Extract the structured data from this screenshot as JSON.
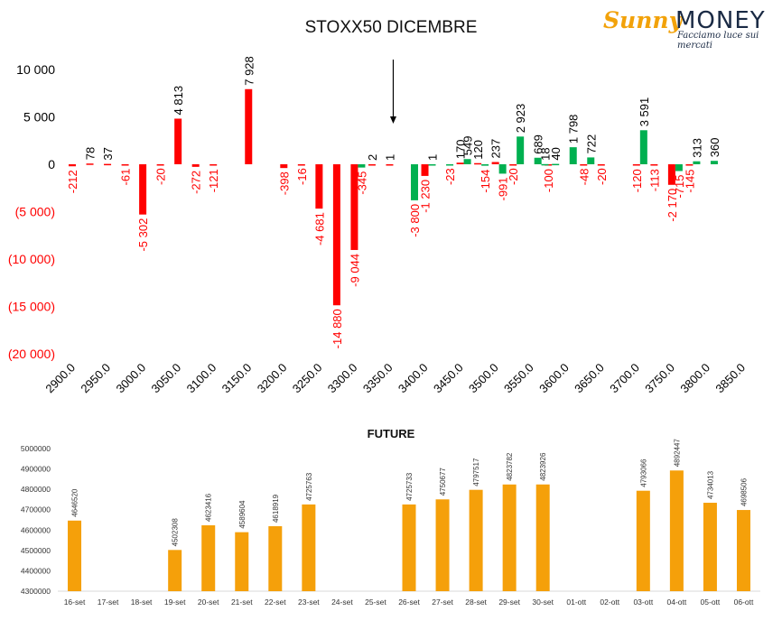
{
  "chart_data": [
    {
      "type": "bar",
      "title": "STOXX50 DICEMBRE",
      "x_tick_labels": [
        "2900.0",
        "2950.0",
        "3000.0",
        "3050.0",
        "3100.0",
        "3150.0",
        "3200.0",
        "3250.0",
        "3300.0",
        "3350.0",
        "3400.0",
        "3450.0",
        "3500.0",
        "3550.0",
        "3600.0",
        "3650.0",
        "3700.0",
        "3750.0",
        "3800.0",
        "3850.0"
      ],
      "y_tick_labels": [
        "10 000",
        "5 000",
        "0",
        "(5 000)",
        "(10 000)",
        "(15 000)",
        "(20 000)"
      ],
      "y_ticks": [
        10000,
        5000,
        0,
        -5000,
        -10000,
        -15000,
        -20000
      ],
      "ylim": [
        -20000,
        12000
      ],
      "xlim": [
        2900,
        3850
      ],
      "grid": false,
      "marker_strike": 3350,
      "series": [
        {
          "color": "#ff0000",
          "points": [
            {
              "x": 2900,
              "y": -212,
              "label": "-212"
            },
            {
              "x": 2925,
              "y": 78,
              "label": "78"
            },
            {
              "x": 2950,
              "y": 37,
              "label": "37"
            },
            {
              "x": 2975,
              "y": -61,
              "label": "-61"
            },
            {
              "x": 3000,
              "y": -5302,
              "label": "-5 302"
            },
            {
              "x": 3025,
              "y": -20,
              "label": "-20"
            },
            {
              "x": 3050,
              "y": 4813,
              "label": "4 813"
            },
            {
              "x": 3075,
              "y": -272,
              "label": "-272"
            },
            {
              "x": 3100,
              "y": -121,
              "label": "-121"
            },
            {
              "x": 3150,
              "y": 7928,
              "label": "7 928"
            },
            {
              "x": 3200,
              "y": -398,
              "label": "-398"
            },
            {
              "x": 3225,
              "y": -16,
              "label": "-16"
            },
            {
              "x": 3250,
              "y": -4681,
              "label": "-4 681"
            },
            {
              "x": 3275,
              "y": -14880,
              "label": "-14 880"
            },
            {
              "x": 3300,
              "y": -9044,
              "label": "-9 044"
            },
            {
              "x": 3325,
              "y": 2,
              "label": "2"
            },
            {
              "x": 3350,
              "y": 1,
              "label": "1"
            },
            {
              "x": 3400,
              "y": -1230,
              "label": "-1 230"
            },
            {
              "x": 3450,
              "y": 170,
              "label": "170"
            },
            {
              "x": 3475,
              "y": 120,
              "label": "120"
            },
            {
              "x": 3500,
              "y": 237,
              "label": "237"
            },
            {
              "x": 3525,
              "y": -20,
              "label": "-20"
            },
            {
              "x": 3575,
              "y": -100,
              "label": "-100"
            },
            {
              "x": 3625,
              "y": -48,
              "label": "-48"
            },
            {
              "x": 3650,
              "y": -20,
              "label": "-20"
            },
            {
              "x": 3700,
              "y": -120,
              "label": "-120"
            },
            {
              "x": 3725,
              "y": -113,
              "label": "-113"
            },
            {
              "x": 3750,
              "y": -2170,
              "label": "-2 170"
            },
            {
              "x": 3775,
              "y": -145,
              "label": "-145"
            }
          ]
        },
        {
          "color": "#00b050",
          "points": [
            {
              "x": 3300,
              "y": -345,
              "label": "-345"
            },
            {
              "x": 3375,
              "y": -3800,
              "label": "-3 800"
            },
            {
              "x": 3400,
              "y": 1,
              "label": "1"
            },
            {
              "x": 3425,
              "y": -23,
              "label": "-23"
            },
            {
              "x": 3450,
              "y": 549,
              "label": "549"
            },
            {
              "x": 3475,
              "y": -154,
              "label": "-154"
            },
            {
              "x": 3500,
              "y": -991,
              "label": "-991"
            },
            {
              "x": 3525,
              "y": 2923,
              "label": "2 923"
            },
            {
              "x": 3550,
              "y": 689,
              "label": "689"
            },
            {
              "x": 3560,
              "y": 18,
              "label": "18"
            },
            {
              "x": 3575,
              "y": 40,
              "label": "40"
            },
            {
              "x": 3600,
              "y": 1798,
              "label": "1 798"
            },
            {
              "x": 3625,
              "y": 722,
              "label": "722"
            },
            {
              "x": 3700,
              "y": 3591,
              "label": "3 591"
            },
            {
              "x": 3750,
              "y": -715,
              "label": "-715"
            },
            {
              "x": 3775,
              "y": 313,
              "label": "313"
            },
            {
              "x": 3800,
              "y": 360,
              "label": "360"
            }
          ]
        }
      ]
    },
    {
      "type": "bar",
      "title": "FUTURE",
      "color": "#f5a00a",
      "categories": [
        "16-set",
        "17-set",
        "18-set",
        "19-set",
        "20-set",
        "21-set",
        "22-set",
        "23-set",
        "24-set",
        "25-set",
        "26-set",
        "27-set",
        "28-set",
        "29-set",
        "30-set",
        "01-ott",
        "02-ott",
        "03-ott",
        "04-ott",
        "05-ott",
        "06-ott"
      ],
      "values": [
        4646520,
        null,
        null,
        4502308,
        4623416,
        4589604,
        4618919,
        4725763,
        null,
        null,
        4725733,
        4750677,
        4797517,
        4823782,
        4823926,
        null,
        null,
        4793066,
        4892447,
        4734013,
        4698506
      ],
      "y_tick_labels": [
        "5000000",
        "4900000",
        "4800000",
        "4700000",
        "4600000",
        "4500000",
        "4400000",
        "4300000"
      ],
      "y_ticks": [
        5000000,
        4900000,
        4800000,
        4700000,
        4600000,
        4500000,
        4400000,
        4300000
      ],
      "ylim": [
        4300000,
        5000000
      ],
      "grid": false
    }
  ],
  "brand": {
    "word1": "Sunny",
    "word2": "MONEY",
    "tagline": "Facciamo luce sui mercati"
  }
}
